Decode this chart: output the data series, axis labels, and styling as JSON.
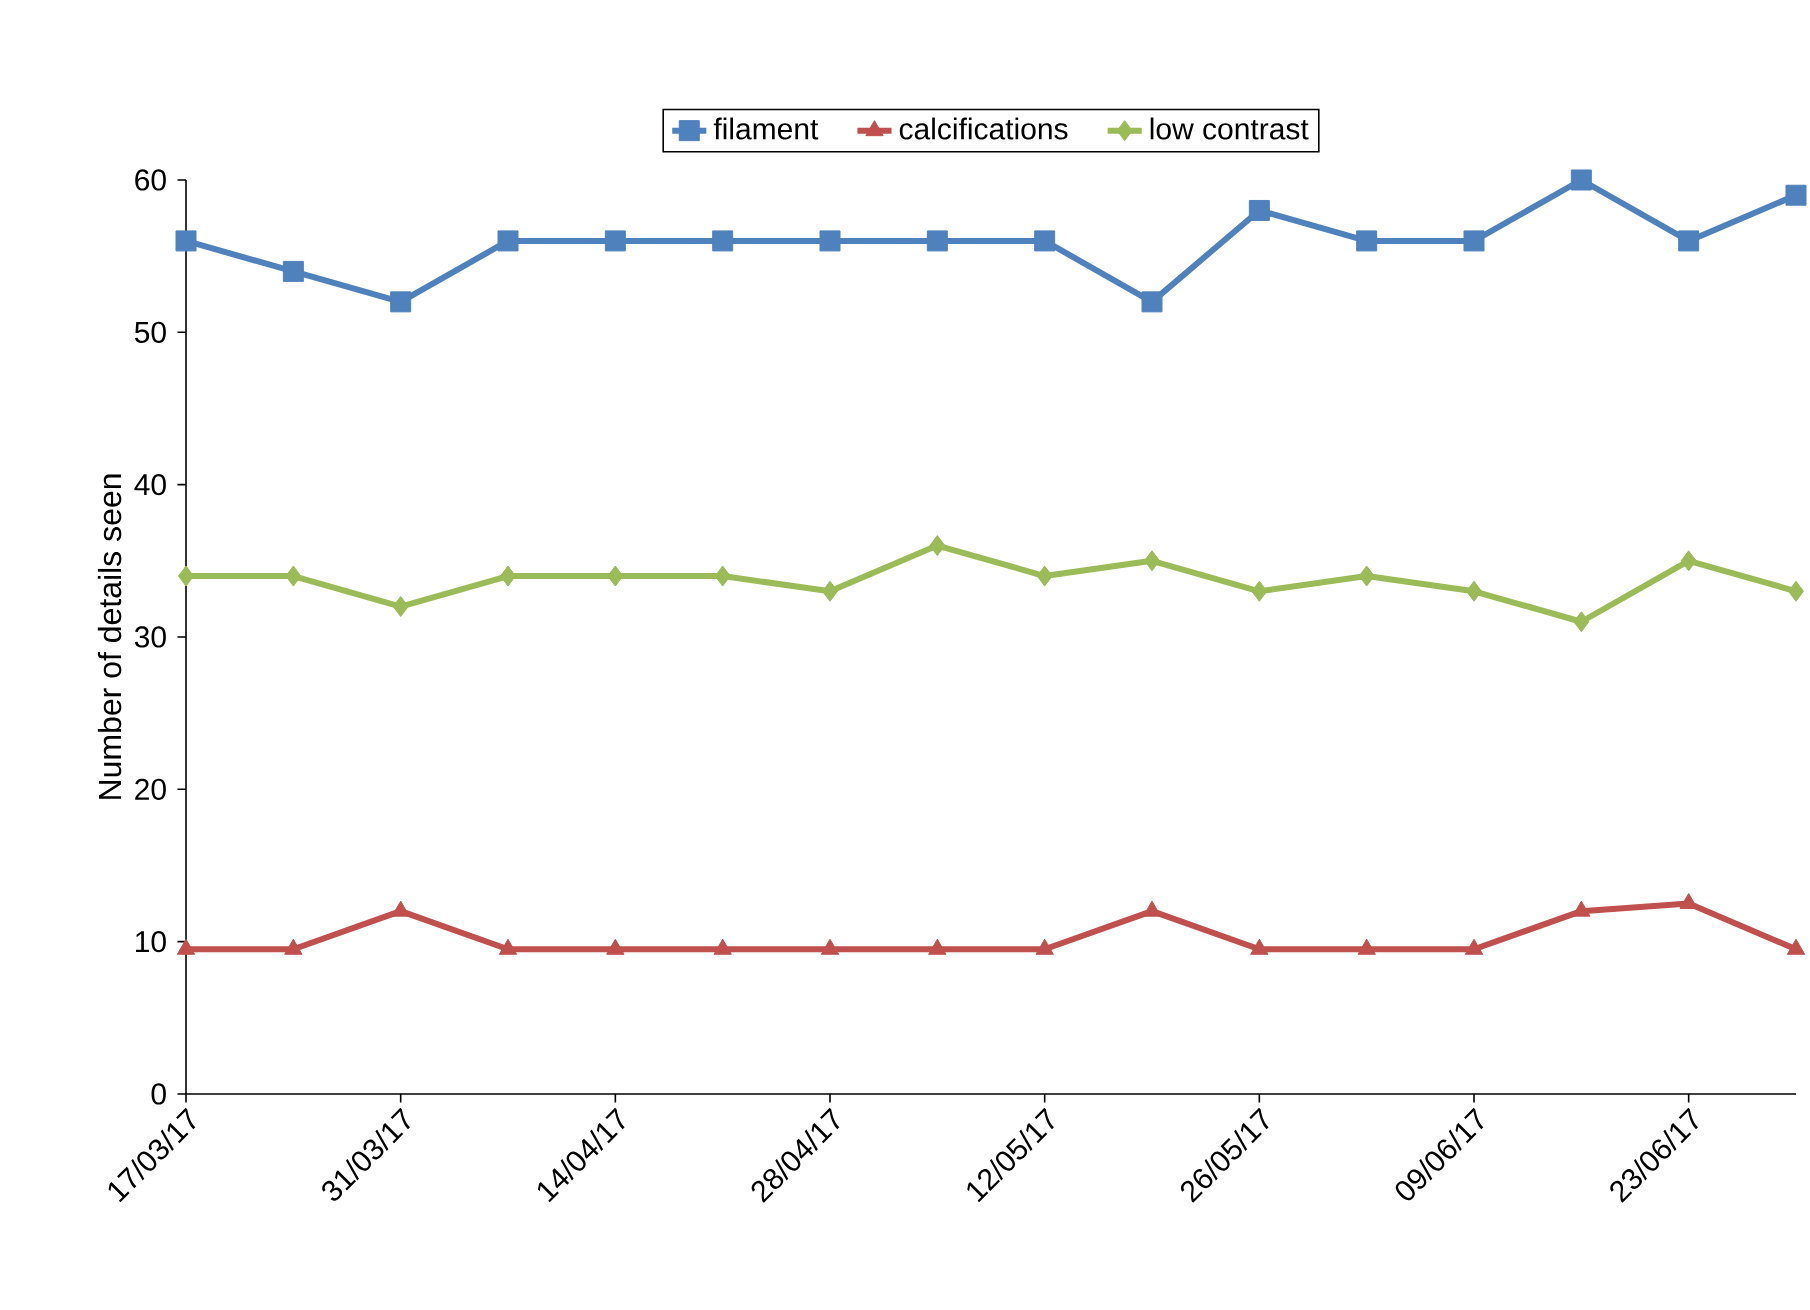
{
  "chart_data": {
    "type": "line",
    "ylabel": "Number of details seen",
    "categories": [
      "17/03/17",
      null,
      "31/03/17",
      null,
      "14/04/17",
      null,
      "28/04/17",
      null,
      "12/05/17",
      null,
      "26/05/17",
      null,
      "09/06/17",
      null,
      "23/06/17",
      null
    ],
    "series": [
      {
        "name": "filament",
        "color": "#4f81bd",
        "marker": "square",
        "values": [
          56,
          54,
          52,
          56,
          56,
          56,
          56,
          56,
          56,
          52,
          58,
          56,
          56,
          60,
          56,
          59
        ]
      },
      {
        "name": "calcifications",
        "color": "#c0504d",
        "marker": "triangle",
        "values": [
          9.5,
          9.5,
          12,
          9.5,
          9.5,
          9.5,
          9.5,
          9.5,
          9.5,
          12,
          9.5,
          9.5,
          9.5,
          12,
          12.5,
          9.5
        ]
      },
      {
        "name": "low contrast",
        "color": "#9bbb59",
        "marker": "diamond",
        "values": [
          34,
          34,
          32,
          34,
          34,
          34,
          33,
          36,
          34,
          35,
          33,
          34,
          33,
          31,
          35,
          33
        ]
      }
    ],
    "ylim": [
      0,
      60
    ],
    "yticks": [
      0,
      10,
      20,
      30,
      40,
      50,
      60
    ],
    "grid": false,
    "legend": "top",
    "line_style": "solid"
  }
}
